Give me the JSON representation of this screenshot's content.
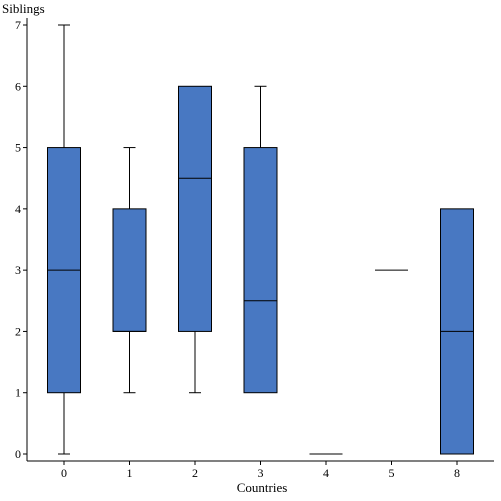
{
  "chart_data": {
    "type": "box",
    "xlabel": "Countries",
    "ylabel": "Siblings",
    "ylim": [
      0,
      7
    ],
    "yticks": [
      0,
      1,
      2,
      3,
      4,
      5,
      6,
      7
    ],
    "categories": [
      "0",
      "1",
      "2",
      "3",
      "4",
      "5",
      "8"
    ],
    "boxes": [
      {
        "category": "0",
        "min": 0,
        "q1": 1,
        "median": 3,
        "q3": 5,
        "max": 7
      },
      {
        "category": "1",
        "min": 1,
        "q1": 2,
        "median": 2,
        "q3": 4,
        "max": 5
      },
      {
        "category": "2",
        "min": 1,
        "q1": 2,
        "median": 4.5,
        "q3": 6,
        "max": 6
      },
      {
        "category": "3",
        "min": 1,
        "q1": 1,
        "median": 2.5,
        "q3": 5,
        "max": 6
      },
      {
        "category": "4",
        "min": 0,
        "q1": 0,
        "median": 0,
        "q3": 0,
        "max": 0
      },
      {
        "category": "5",
        "min": 3,
        "q1": 3,
        "median": 3,
        "q3": 3,
        "max": 3
      },
      {
        "category": "8",
        "min": 0,
        "q1": 0,
        "median": 2,
        "q3": 4,
        "max": 4
      }
    ],
    "box_color": "#4878c2",
    "grid": false,
    "legend": "none"
  }
}
